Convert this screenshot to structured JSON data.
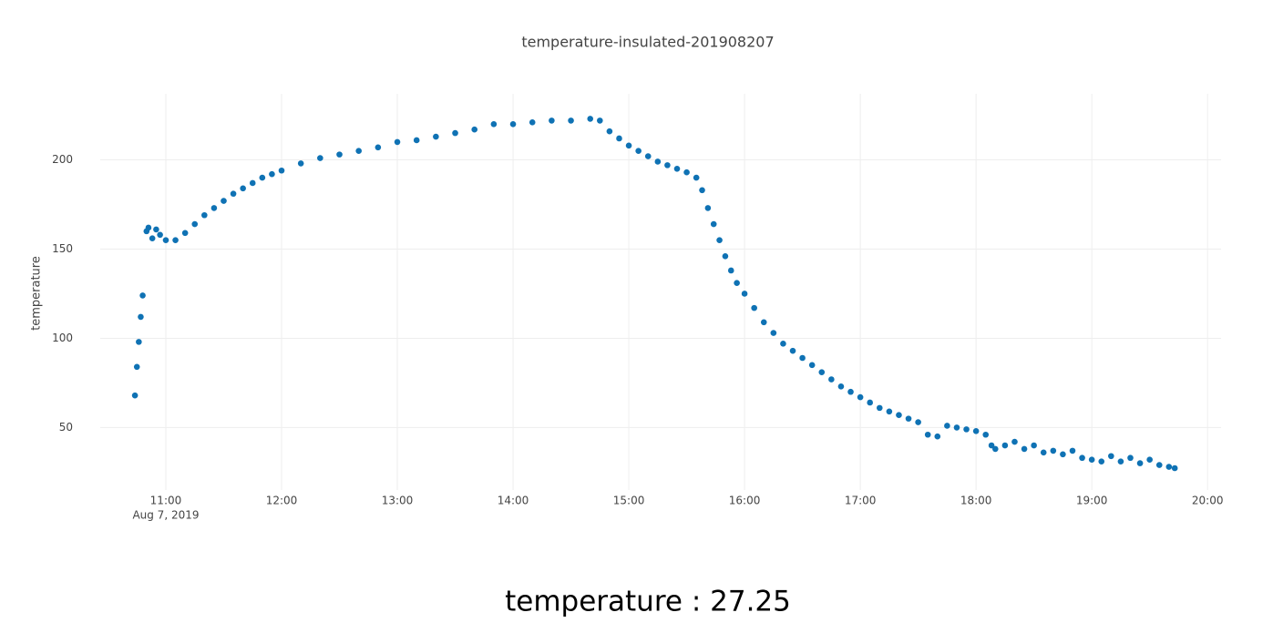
{
  "chart_data": {
    "type": "scatter",
    "title": "temperature-insulated-201908207",
    "y_label": "temperature",
    "x_date_label": "Aug 7, 2019",
    "readout": "temperature : 27.25",
    "color": "#0f72b4",
    "grid": true,
    "xlim": [
      "2019-08-07 10:26",
      "2019-08-07 20:07"
    ],
    "ylim": [
      15,
      237
    ],
    "xticks": [
      {
        "value": "2019-08-07 11:00",
        "label": "11:00"
      },
      {
        "value": "2019-08-07 12:00",
        "label": "12:00"
      },
      {
        "value": "2019-08-07 13:00",
        "label": "13:00"
      },
      {
        "value": "2019-08-07 14:00",
        "label": "14:00"
      },
      {
        "value": "2019-08-07 15:00",
        "label": "15:00"
      },
      {
        "value": "2019-08-07 16:00",
        "label": "16:00"
      },
      {
        "value": "2019-08-07 17:00",
        "label": "17:00"
      },
      {
        "value": "2019-08-07 18:00",
        "label": "18:00"
      },
      {
        "value": "2019-08-07 19:00",
        "label": "19:00"
      },
      {
        "value": "2019-08-07 20:00",
        "label": "20:00"
      }
    ],
    "yticks": [
      50,
      100,
      150,
      200
    ],
    "x": [
      "2019-08-07 10:44",
      "2019-08-07 10:45",
      "2019-08-07 10:46",
      "2019-08-07 10:47",
      "2019-08-07 10:48",
      "2019-08-07 10:50",
      "2019-08-07 10:51",
      "2019-08-07 10:53",
      "2019-08-07 10:55",
      "2019-08-07 10:57",
      "2019-08-07 11:00",
      "2019-08-07 11:05",
      "2019-08-07 11:10",
      "2019-08-07 11:15",
      "2019-08-07 11:20",
      "2019-08-07 11:25",
      "2019-08-07 11:30",
      "2019-08-07 11:35",
      "2019-08-07 11:40",
      "2019-08-07 11:45",
      "2019-08-07 11:50",
      "2019-08-07 11:55",
      "2019-08-07 12:00",
      "2019-08-07 12:10",
      "2019-08-07 12:20",
      "2019-08-07 12:30",
      "2019-08-07 12:40",
      "2019-08-07 12:50",
      "2019-08-07 13:00",
      "2019-08-07 13:10",
      "2019-08-07 13:20",
      "2019-08-07 13:30",
      "2019-08-07 13:40",
      "2019-08-07 13:50",
      "2019-08-07 14:00",
      "2019-08-07 14:10",
      "2019-08-07 14:20",
      "2019-08-07 14:30",
      "2019-08-07 14:40",
      "2019-08-07 14:45",
      "2019-08-07 14:50",
      "2019-08-07 14:55",
      "2019-08-07 15:00",
      "2019-08-07 15:05",
      "2019-08-07 15:10",
      "2019-08-07 15:15",
      "2019-08-07 15:20",
      "2019-08-07 15:25",
      "2019-08-07 15:30",
      "2019-08-07 15:35",
      "2019-08-07 15:38",
      "2019-08-07 15:41",
      "2019-08-07 15:44",
      "2019-08-07 15:47",
      "2019-08-07 15:50",
      "2019-08-07 15:53",
      "2019-08-07 15:56",
      "2019-08-07 16:00",
      "2019-08-07 16:05",
      "2019-08-07 16:10",
      "2019-08-07 16:15",
      "2019-08-07 16:20",
      "2019-08-07 16:25",
      "2019-08-07 16:30",
      "2019-08-07 16:35",
      "2019-08-07 16:40",
      "2019-08-07 16:45",
      "2019-08-07 16:50",
      "2019-08-07 16:55",
      "2019-08-07 17:00",
      "2019-08-07 17:05",
      "2019-08-07 17:10",
      "2019-08-07 17:15",
      "2019-08-07 17:20",
      "2019-08-07 17:25",
      "2019-08-07 17:30",
      "2019-08-07 17:35",
      "2019-08-07 17:40",
      "2019-08-07 17:45",
      "2019-08-07 17:50",
      "2019-08-07 17:55",
      "2019-08-07 18:00",
      "2019-08-07 18:05",
      "2019-08-07 18:08",
      "2019-08-07 18:10",
      "2019-08-07 18:15",
      "2019-08-07 18:20",
      "2019-08-07 18:25",
      "2019-08-07 18:30",
      "2019-08-07 18:35",
      "2019-08-07 18:40",
      "2019-08-07 18:45",
      "2019-08-07 18:50",
      "2019-08-07 18:55",
      "2019-08-07 19:00",
      "2019-08-07 19:05",
      "2019-08-07 19:10",
      "2019-08-07 19:15",
      "2019-08-07 19:20",
      "2019-08-07 19:25",
      "2019-08-07 19:30",
      "2019-08-07 19:35",
      "2019-08-07 19:40",
      "2019-08-07 19:43"
    ],
    "values": [
      68,
      84,
      98,
      112,
      124,
      160,
      162,
      156,
      161,
      158,
      155,
      155,
      159,
      164,
      169,
      173,
      177,
      181,
      184,
      187,
      190,
      192,
      194,
      198,
      201,
      203,
      205,
      207,
      210,
      211,
      213,
      215,
      217,
      220,
      220,
      221,
      222,
      222,
      223,
      222,
      216,
      212,
      208,
      205,
      202,
      199,
      197,
      195,
      193,
      190,
      183,
      173,
      164,
      155,
      146,
      138,
      131,
      125,
      117,
      109,
      103,
      97,
      93,
      89,
      85,
      81,
      77,
      73,
      70,
      67,
      64,
      61,
      59,
      57,
      55,
      53,
      46,
      45,
      51,
      50,
      49,
      48,
      46,
      40,
      38,
      40,
      42,
      38,
      40,
      36,
      37,
      35,
      37,
      33,
      32,
      31,
      34,
      31,
      33,
      30,
      32,
      29,
      28,
      27.25
    ]
  }
}
